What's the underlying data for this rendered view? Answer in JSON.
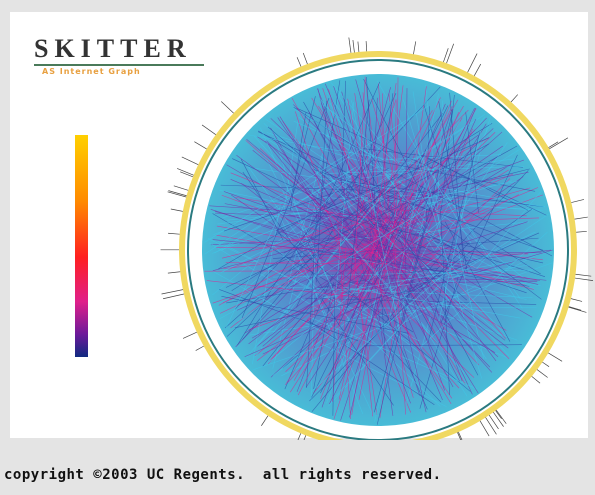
{
  "header": {
    "title": "SKITTER",
    "subtitle": "AS Internet Graph"
  },
  "footer": {
    "copyright": "copyright ©2003 UC Regents.  all rights reserved."
  }
}
